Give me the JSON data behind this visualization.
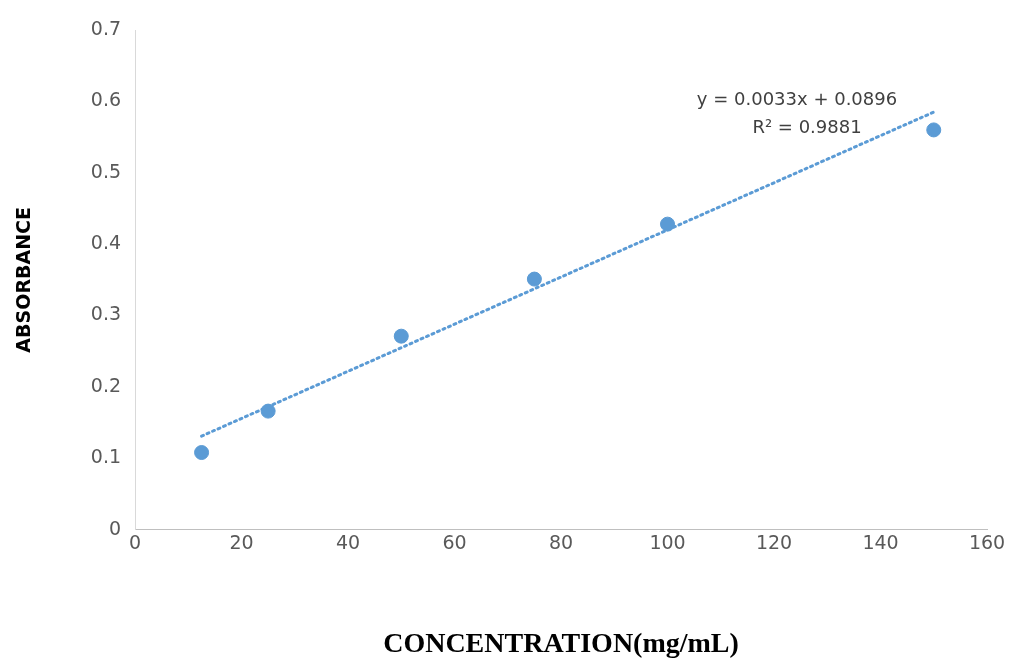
{
  "chart_data": {
    "type": "scatter",
    "xlabel": "CONCENTRATION(mg/mL)",
    "ylabel": "ABSORBANCE",
    "xlim": [
      0,
      160
    ],
    "xticks": [
      0,
      20,
      40,
      60,
      80,
      100,
      120,
      140,
      160
    ],
    "ylim": [
      0,
      0.7
    ],
    "yticks": [
      0,
      0.1,
      0.2,
      0.3,
      0.4,
      0.5,
      0.6,
      0.7
    ],
    "grid": false,
    "legend": false,
    "marker": "circle",
    "annotations": [
      "y = 0.0033x + 0.0896",
      "R² = 0.9881"
    ],
    "series": [
      {
        "color": "#5b9bd5",
        "x": [
          12.5,
          25,
          50,
          75,
          100,
          150
        ],
        "values": [
          0.108,
          0.166,
          0.271,
          0.351,
          0.428,
          0.56
        ]
      },
      {
        "type": "line",
        "color": "#5b9bd5",
        "marker": "none",
        "line_style": "dotted",
        "x": [
          12.5,
          150
        ],
        "values": [
          0.131,
          0.585
        ]
      }
    ]
  }
}
